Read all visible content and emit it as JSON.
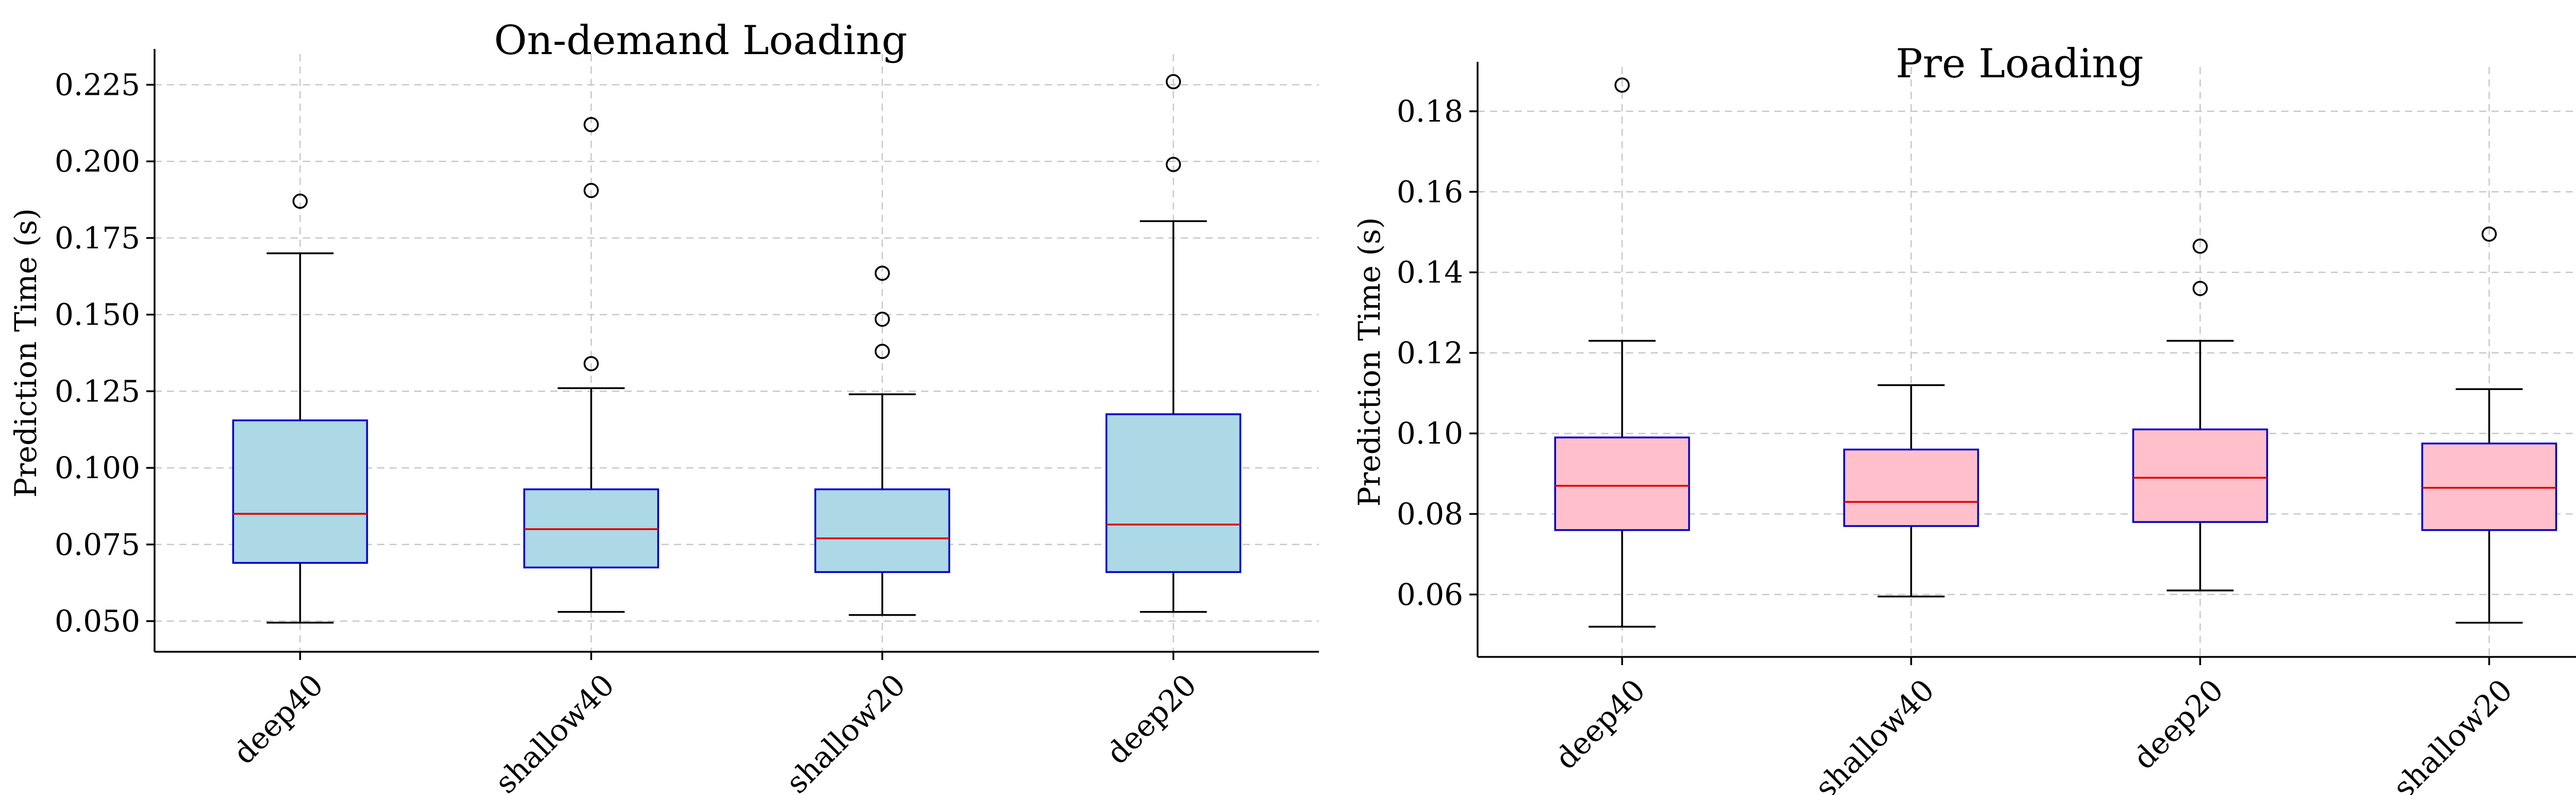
{
  "chart_data": [
    {
      "type": "box",
      "title": "On-demand Loading",
      "ylabel": "Prediction Time (s)",
      "xlabel": "",
      "ylim": [
        0.04,
        0.235
      ],
      "yticks": [
        "0.050",
        "0.075",
        "0.100",
        "0.125",
        "0.150",
        "0.175",
        "0.200",
        "0.225"
      ],
      "categories": [
        "deep40",
        "shallow40",
        "shallow20",
        "deep20"
      ],
      "box_color": "#add8e6",
      "grid": true,
      "series": [
        {
          "whislo": 0.0495,
          "q1": 0.069,
          "med": 0.085,
          "q3": 0.1155,
          "whishi": 0.17,
          "fliers": [
            0.187
          ]
        },
        {
          "whislo": 0.053,
          "q1": 0.0675,
          "med": 0.08,
          "q3": 0.093,
          "whishi": 0.126,
          "fliers": [
            0.134,
            0.1905,
            0.212
          ]
        },
        {
          "whislo": 0.052,
          "q1": 0.066,
          "med": 0.077,
          "q3": 0.093,
          "whishi": 0.124,
          "fliers": [
            0.138,
            0.1485,
            0.1635
          ]
        },
        {
          "whislo": 0.053,
          "q1": 0.066,
          "med": 0.0815,
          "q3": 0.1175,
          "whishi": 0.1805,
          "fliers": [
            0.199,
            0.226
          ]
        }
      ]
    },
    {
      "type": "box",
      "title": "Pre Loading",
      "ylabel": "Prediction Time (s)",
      "xlabel": "",
      "ylim": [
        0.0445,
        0.191
      ],
      "yticks": [
        "0.06",
        "0.08",
        "0.10",
        "0.12",
        "0.14",
        "0.16",
        "0.18"
      ],
      "categories": [
        "deep40",
        "shallow40",
        "deep20",
        "shallow20"
      ],
      "box_color": "#ffc0cb",
      "grid": true,
      "series": [
        {
          "whislo": 0.052,
          "q1": 0.076,
          "med": 0.087,
          "q3": 0.099,
          "whishi": 0.123,
          "fliers": [
            0.1865
          ]
        },
        {
          "whislo": 0.0595,
          "q1": 0.077,
          "med": 0.083,
          "q3": 0.096,
          "whishi": 0.112,
          "fliers": []
        },
        {
          "whislo": 0.061,
          "q1": 0.078,
          "med": 0.089,
          "q3": 0.101,
          "whishi": 0.123,
          "fliers": [
            0.136,
            0.1465
          ]
        },
        {
          "whislo": 0.053,
          "q1": 0.076,
          "med": 0.0865,
          "q3": 0.0975,
          "whishi": 0.111,
          "fliers": [
            0.1495
          ]
        }
      ]
    }
  ]
}
